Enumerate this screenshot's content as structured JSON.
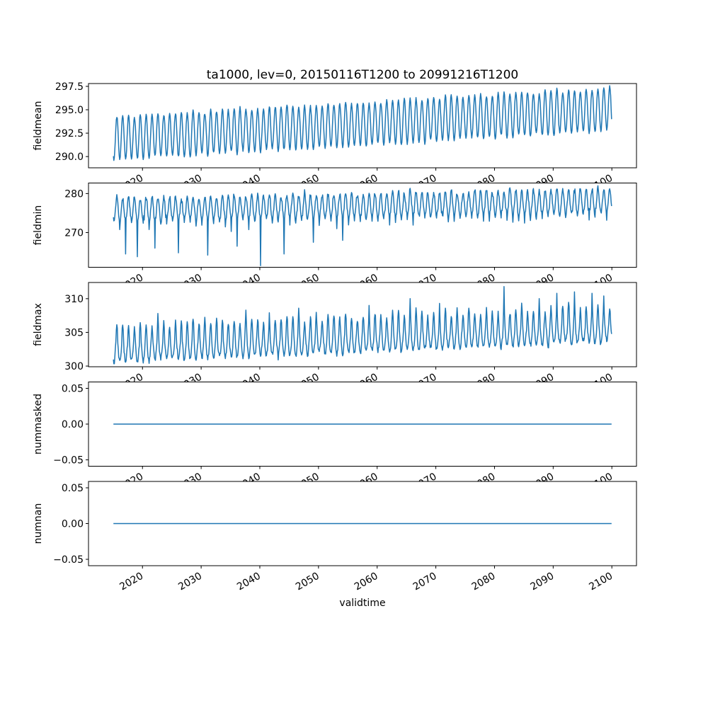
{
  "figure": {
    "background": "#ffffff"
  },
  "chart_data": {
    "type": "line",
    "title": "ta1000, lev=0, 20150116T1200 to 20991216T1200",
    "grid": false,
    "legend": "none",
    "line_color": "#1f77b4",
    "line_width": 1.5,
    "time_range": {
      "start": "20150116T1200",
      "end": "20991216T1200",
      "samples_per_year": 12
    },
    "x_axis": {
      "label": "validtime",
      "ticks": [
        2020,
        2030,
        2040,
        2050,
        2060,
        2070,
        2080,
        2090,
        2100
      ],
      "lim": [
        2010.8,
        2104.2
      ],
      "tick_rotation_deg": 30
    },
    "subplots": [
      {
        "name": "fieldmean",
        "ylabel": "fieldmean",
        "ylim": [
          288.8,
          297.8
        ],
        "yticks": [
          {
            "v": 297.5,
            "label": "297.5"
          },
          {
            "v": 295.0,
            "label": "295.0"
          },
          {
            "v": 292.5,
            "label": "292.5"
          },
          {
            "v": 290.0,
            "label": "290.0"
          }
        ],
        "series": {
          "kind": "seasonal",
          "seed": 11,
          "base": [
            291.95,
            295.05
          ],
          "amp_pos": 2.3,
          "amp_neg": 2.3,
          "peak_pow": 1,
          "dip_pow": 1,
          "jitter": 0.1,
          "noise": 0.1
        }
      },
      {
        "name": "fieldmin",
        "ylabel": "fieldmin",
        "ylim": [
          261.1,
          282.7
        ],
        "yticks": [
          {
            "v": 280,
            "label": "280"
          },
          {
            "v": 270,
            "label": "270"
          }
        ],
        "series": {
          "kind": "seasonal",
          "seed": 22,
          "base": [
            275.4,
            277.6
          ],
          "amp_pos": 3.6,
          "amp_neg": 2.6,
          "peak_pow": 1,
          "dip_pow": 1,
          "jitter": 0.12,
          "noise": 0.55,
          "dips": {
            "d0": 0.3,
            "dv": 3.2,
            "fade": 0.5
          },
          "spike_at": "min",
          "spikes": [
            [
              2017,
              264.5
            ],
            [
              2019,
              263.8
            ],
            [
              2022,
              266.0
            ],
            [
              2026,
              264.8
            ],
            [
              2031,
              264.2
            ],
            [
              2036,
              266.5
            ],
            [
              2040,
              261.5
            ],
            [
              2044,
              264.5
            ],
            [
              2049,
              267.5
            ],
            [
              2054,
              268.0
            ]
          ]
        }
      },
      {
        "name": "fieldmax",
        "ylabel": "fieldmax",
        "ylim": [
          299.9,
          312.4
        ],
        "yticks": [
          {
            "v": 310,
            "label": "310"
          },
          {
            "v": 305,
            "label": "305"
          },
          {
            "v": 300,
            "label": "300"
          }
        ],
        "series": {
          "kind": "seasonal",
          "seed": 33,
          "base": [
            302.3,
            305.2
          ],
          "amp_pos": 3.8,
          "amp_neg": 1.6,
          "peak_pow": 1.8,
          "dip_pow": 1,
          "jitter": 0.18,
          "noise": 0.3,
          "spike_at": "max",
          "spikes": [
            [
              2022,
              307.8
            ],
            [
              2037,
              308.3
            ],
            [
              2041,
              307.9
            ],
            [
              2046,
              308.6
            ],
            [
              2058,
              309.0
            ],
            [
              2065,
              310.0
            ],
            [
              2070,
              309.3
            ],
            [
              2081,
              311.8
            ],
            [
              2087,
              310.0
            ],
            [
              2090,
              310.8
            ],
            [
              2093,
              311.0
            ],
            [
              2096,
              310.8
            ],
            [
              2098,
              310.4
            ]
          ]
        }
      },
      {
        "name": "nummasked",
        "ylabel": "nummasked",
        "ylim": [
          -0.0589,
          0.0589
        ],
        "yticks": [
          {
            "v": 0.05,
            "label": "0.05"
          },
          {
            "v": 0.0,
            "label": "0.00"
          },
          {
            "v": -0.05,
            "label": "−0.05"
          }
        ],
        "series": {
          "kind": "flat",
          "value": 0,
          "t": [
            2015.042,
            2099.958
          ]
        }
      },
      {
        "name": "numnan",
        "ylabel": "numnan",
        "ylim": [
          -0.0589,
          0.0589
        ],
        "yticks": [
          {
            "v": 0.05,
            "label": "0.05"
          },
          {
            "v": 0.0,
            "label": "0.00"
          },
          {
            "v": -0.05,
            "label": "−0.05"
          }
        ],
        "series": {
          "kind": "flat",
          "value": 0,
          "t": [
            2015.042,
            2099.958
          ]
        }
      }
    ]
  }
}
